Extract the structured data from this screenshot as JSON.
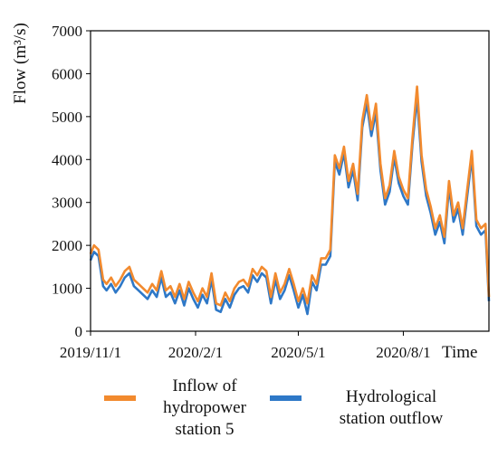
{
  "chart_data": {
    "type": "line",
    "title": "",
    "ylabel": "Flow (m³/s)",
    "xlabel": "Time",
    "ylim": [
      0,
      7000
    ],
    "y_ticks": [
      0,
      1000,
      2000,
      3000,
      4000,
      5000,
      6000,
      7000
    ],
    "x_ticks": [
      "2019/11/1",
      "2020/2/1",
      "2020/5/1",
      "2020/8/1"
    ],
    "x_range": [
      "2019/11/1",
      "2020/10/15"
    ],
    "grid": false,
    "legend_position": "bottom",
    "colors": {
      "inflow": "#F28A2E",
      "outflow": "#2E78C7"
    },
    "legend": {
      "inflow": [
        "Inflow of",
        "hydropower",
        "station 5"
      ],
      "outflow": [
        "Hydrological",
        "station outflow"
      ]
    },
    "series": [
      {
        "name": "Inflow of hydropower station 5",
        "x": [
          "2019/11/1",
          "2019/11/4",
          "2019/11/8",
          "2019/11/12",
          "2019/11/15",
          "2019/11/19",
          "2019/11/23",
          "2019/11/27",
          "2019/12/1",
          "2019/12/5",
          "2019/12/9",
          "2019/12/13",
          "2019/12/17",
          "2019/12/21",
          "2019/12/25",
          "2019/12/29",
          "2020/1/2",
          "2020/1/6",
          "2020/1/10",
          "2020/1/14",
          "2020/1/18",
          "2020/1/22",
          "2020/1/26",
          "2020/1/30",
          "2020/2/3",
          "2020/2/7",
          "2020/2/11",
          "2020/2/15",
          "2020/2/19",
          "2020/2/23",
          "2020/2/27",
          "2020/3/2",
          "2020/3/6",
          "2020/3/10",
          "2020/3/14",
          "2020/3/18",
          "2020/3/22",
          "2020/3/26",
          "2020/3/30",
          "2020/4/3",
          "2020/4/7",
          "2020/4/11",
          "2020/4/15",
          "2020/4/19",
          "2020/4/23",
          "2020/4/27",
          "2020/5/1",
          "2020/5/5",
          "2020/5/9",
          "2020/5/13",
          "2020/5/17",
          "2020/5/21",
          "2020/5/25",
          "2020/5/29",
          "2020/6/2",
          "2020/6/6",
          "2020/6/10",
          "2020/6/14",
          "2020/6/18",
          "2020/6/22",
          "2020/6/26",
          "2020/6/30",
          "2020/7/4",
          "2020/7/8",
          "2020/7/12",
          "2020/7/16",
          "2020/7/20",
          "2020/7/24",
          "2020/7/28",
          "2020/8/1",
          "2020/8/5",
          "2020/8/9",
          "2020/8/13",
          "2020/8/17",
          "2020/8/21",
          "2020/8/25",
          "2020/8/29",
          "2020/9/2",
          "2020/9/6",
          "2020/9/10",
          "2020/9/14",
          "2020/9/18",
          "2020/9/22",
          "2020/9/26",
          "2020/9/30",
          "2020/10/4",
          "2020/10/8",
          "2020/10/12",
          "2020/10/15"
        ],
        "values": [
          1800,
          2000,
          1900,
          1200,
          1100,
          1250,
          1050,
          1200,
          1400,
          1500,
          1200,
          1100,
          1000,
          900,
          1100,
          950,
          1400,
          950,
          1050,
          800,
          1100,
          750,
          1150,
          900,
          700,
          1000,
          800,
          1350,
          650,
          600,
          900,
          700,
          1000,
          1150,
          1200,
          1050,
          1450,
          1300,
          1500,
          1400,
          800,
          1350,
          900,
          1100,
          1450,
          1100,
          700,
          1000,
          650,
          1300,
          1100,
          1700,
          1700,
          1900,
          4100,
          3800,
          4300,
          3500,
          3900,
          3200,
          4900,
          5500,
          4700,
          5300,
          3900,
          3100,
          3400,
          4200,
          3600,
          3300,
          3100,
          4500,
          5700,
          4100,
          3300,
          2900,
          2400,
          2700,
          2200,
          3500,
          2700,
          3000,
          2400,
          3300,
          4200,
          2600,
          2400,
          2500,
          800
        ]
      },
      {
        "name": "Hydrological station outflow",
        "x": [
          "2019/11/1",
          "2019/11/4",
          "2019/11/8",
          "2019/11/12",
          "2019/11/15",
          "2019/11/19",
          "2019/11/23",
          "2019/11/27",
          "2019/12/1",
          "2019/12/5",
          "2019/12/9",
          "2019/12/13",
          "2019/12/17",
          "2019/12/21",
          "2019/12/25",
          "2019/12/29",
          "2020/1/2",
          "2020/1/6",
          "2020/1/10",
          "2020/1/14",
          "2020/1/18",
          "2020/1/22",
          "2020/1/26",
          "2020/1/30",
          "2020/2/3",
          "2020/2/7",
          "2020/2/11",
          "2020/2/15",
          "2020/2/19",
          "2020/2/23",
          "2020/2/27",
          "2020/3/2",
          "2020/3/6",
          "2020/3/10",
          "2020/3/14",
          "2020/3/18",
          "2020/3/22",
          "2020/3/26",
          "2020/3/30",
          "2020/4/3",
          "2020/4/7",
          "2020/4/11",
          "2020/4/15",
          "2020/4/19",
          "2020/4/23",
          "2020/4/27",
          "2020/5/1",
          "2020/5/5",
          "2020/5/9",
          "2020/5/13",
          "2020/5/17",
          "2020/5/21",
          "2020/5/25",
          "2020/5/29",
          "2020/6/2",
          "2020/6/6",
          "2020/6/10",
          "2020/6/14",
          "2020/6/18",
          "2020/6/22",
          "2020/6/26",
          "2020/6/30",
          "2020/7/4",
          "2020/7/8",
          "2020/7/12",
          "2020/7/16",
          "2020/7/20",
          "2020/7/24",
          "2020/7/28",
          "2020/8/1",
          "2020/8/5",
          "2020/8/9",
          "2020/8/13",
          "2020/8/17",
          "2020/8/21",
          "2020/8/25",
          "2020/8/29",
          "2020/9/2",
          "2020/9/6",
          "2020/9/10",
          "2020/9/14",
          "2020/9/18",
          "2020/9/22",
          "2020/9/26",
          "2020/9/30",
          "2020/10/4",
          "2020/10/8",
          "2020/10/12",
          "2020/10/15"
        ],
        "values": [
          1650,
          1850,
          1750,
          1050,
          950,
          1100,
          900,
          1050,
          1250,
          1350,
          1050,
          950,
          850,
          750,
          950,
          800,
          1250,
          800,
          900,
          650,
          950,
          600,
          1000,
          750,
          550,
          850,
          650,
          1200,
          500,
          450,
          750,
          550,
          850,
          1000,
          1050,
          900,
          1300,
          1150,
          1350,
          1250,
          650,
          1200,
          750,
          950,
          1300,
          950,
          550,
          850,
          400,
          1150,
          950,
          1550,
          1550,
          1750,
          3950,
          3650,
          4150,
          3350,
          3750,
          3050,
          4750,
          5300,
          4550,
          5100,
          3750,
          2950,
          3250,
          4050,
          3450,
          3150,
          2950,
          4350,
          5450,
          3950,
          3150,
          2750,
          2250,
          2550,
          2050,
          3350,
          2550,
          2850,
          2250,
          3150,
          4050,
          2450,
          2250,
          2350,
          700
        ]
      }
    ]
  }
}
